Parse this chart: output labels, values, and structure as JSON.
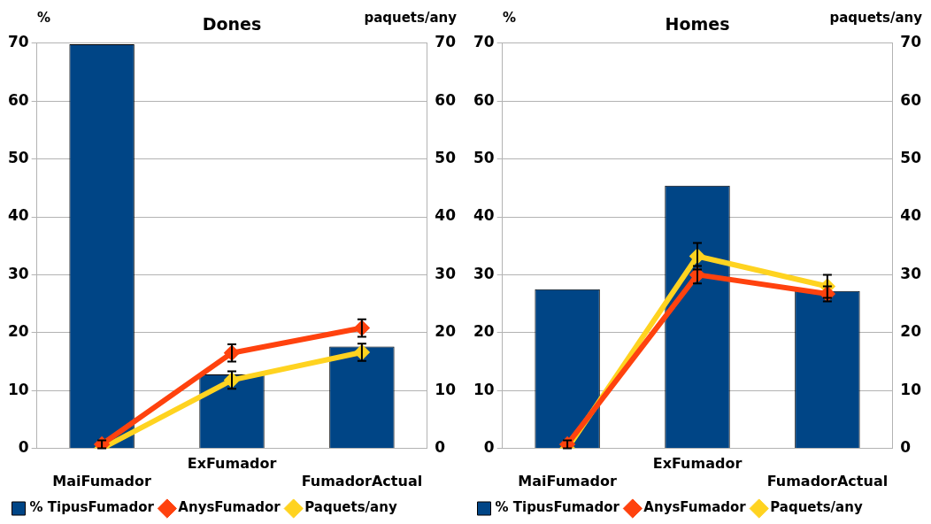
{
  "chart_data": [
    {
      "type": "bar",
      "title": "Dones",
      "ylabel": "%",
      "y2label": "paquets/any",
      "categories": [
        "MaiFumador",
        "ExFumador",
        "FumadorActual"
      ],
      "ylim": [
        0,
        70
      ],
      "yticks": [
        0,
        10,
        20,
        30,
        40,
        50,
        60,
        70
      ],
      "y2lim": [
        0,
        70
      ],
      "y2ticks": [
        0,
        10,
        20,
        30,
        40,
        50,
        60,
        70
      ],
      "grid": "y",
      "legend": "bottom",
      "marker": "diamond",
      "series": [
        {
          "name": "% TipusFumador",
          "color": "#004586",
          "values": [
            69.8,
            12.8,
            17.6
          ]
        },
        {
          "name": "AnysFumador",
          "type": "line",
          "axis": "y2",
          "color": "#ff420e",
          "values": [
            0.7,
            16.5,
            20.8
          ],
          "errors": [
            0.7,
            1.5,
            1.5
          ]
        },
        {
          "name": "Paquets/any",
          "type": "line",
          "axis": "y2",
          "color": "#ffd320",
          "values": [
            0,
            11.8,
            16.6
          ],
          "errors": [
            null,
            1.5,
            1.5
          ]
        }
      ]
    },
    {
      "type": "bar",
      "title": "Homes",
      "ylabel": "%",
      "y2label": "paquets/any",
      "categories": [
        "MaiFumador",
        "ExFumador",
        "FumadorActual"
      ],
      "ylim": [
        0,
        70
      ],
      "yticks": [
        0,
        10,
        20,
        30,
        40,
        50,
        60,
        70
      ],
      "y2lim": [
        0,
        70
      ],
      "y2ticks": [
        0,
        10,
        20,
        30,
        40,
        50,
        60,
        70
      ],
      "grid": "y",
      "legend": "bottom",
      "marker": "diamond",
      "series": [
        {
          "name": "% TipusFumador",
          "color": "#004586",
          "values": [
            27.5,
            45.4,
            27.2
          ]
        },
        {
          "name": "AnysFumador",
          "type": "line",
          "axis": "y2",
          "color": "#ff420e",
          "values": [
            0.7,
            30,
            26.7
          ],
          "errors": [
            0.7,
            1.5,
            1.3
          ]
        },
        {
          "name": "Paquets/any",
          "type": "line",
          "axis": "y2",
          "color": "#ffd320",
          "values": [
            0,
            33.2,
            28
          ],
          "errors": [
            null,
            2.3,
            2
          ]
        }
      ]
    }
  ]
}
